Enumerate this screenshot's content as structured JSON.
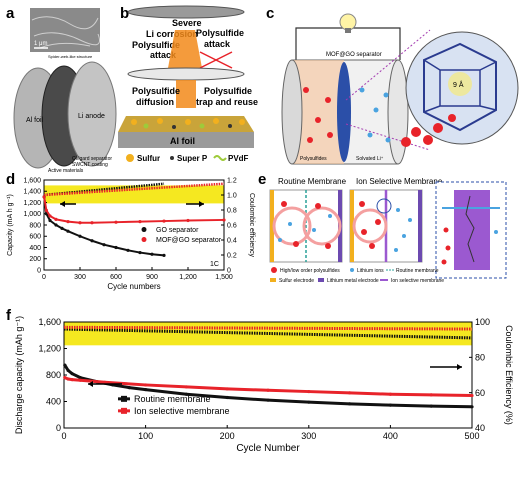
{
  "panels": {
    "a": {
      "label": "a",
      "scale_bar": "1 μm",
      "sem_caption": "Spider-web-like structure",
      "al_foil": "Al foil",
      "li_anode": "Li anode",
      "celgard": "Celgard separator",
      "swcnt": "SWCNT coating",
      "active": "Active materials"
    },
    "b": {
      "label": "b",
      "severe": "Severe",
      "li_corrosion": "Li corrosion",
      "ps_attack_left": "Polysulfide",
      "ps_attack_left2": "attack",
      "ps_attack_right": "Polysulfide",
      "ps_attack_right2": "attack",
      "ps_diffusion": "Polysulfide",
      "ps_diffusion2": "diffusion",
      "ps_trap": "Polysulfide",
      "ps_trap2": "trap and reuse",
      "al_foil": "Al foil",
      "legend_sulfur": "Sulfur",
      "legend_superp": "Super P",
      "legend_pvdf": "PVdF"
    },
    "c": {
      "label": "c",
      "separator": "MOF@GO separator",
      "polysulfides": "Polysulfides",
      "solvated": "Solvated Li⁺",
      "pore": "9 Å"
    },
    "e": {
      "label": "e",
      "routine_title": "Routine Membrane",
      "ion_title": "Ion Selective Membrane",
      "leg_hop": "High/low order polysulfides",
      "leg_li": "Lithium ions",
      "leg_routine": "Routine membrane",
      "leg_sulfur": "Sulfur electrode",
      "leg_lime": "Lithium metal electrode",
      "leg_ion": "Ion selective membrane"
    }
  },
  "chart_data": [
    {
      "panel": "d",
      "type": "scatter",
      "label": "d",
      "xlabel": "Cycle numbers",
      "ylabel": "Capacity (mA h g⁻¹)",
      "y2label": "Coulombic efficiency",
      "xlim": [
        0,
        1500
      ],
      "ylim": [
        0,
        1600
      ],
      "y2lim": [
        0,
        1.2
      ],
      "xticks": [
        "0",
        "300",
        "600",
        "900",
        "1,200",
        "1,500"
      ],
      "yticks": [
        "0",
        "200",
        "400",
        "600",
        "800",
        "1,000",
        "1,200",
        "1,400",
        "1,600"
      ],
      "y2ticks": [
        "0",
        "0.2",
        "0.4",
        "0.6",
        "0.8",
        "1.0",
        "1.2"
      ],
      "rate": "1C",
      "series": [
        {
          "name": "GO separator",
          "color": "#111111",
          "x": [
            1,
            20,
            50,
            100,
            150,
            200,
            300,
            400,
            500,
            600,
            700,
            800,
            900,
            1000
          ],
          "y": [
            1300,
            1000,
            880,
            800,
            740,
            690,
            600,
            520,
            450,
            400,
            350,
            310,
            280,
            260
          ]
        },
        {
          "name": "MOF@GO separator",
          "color": "#e8232a",
          "x": [
            1,
            20,
            50,
            100,
            200,
            300,
            400,
            600,
            800,
            1000,
            1200,
            1500
          ],
          "y": [
            1300,
            1060,
            960,
            900,
            860,
            840,
            840,
            850,
            860,
            870,
            880,
            890
          ]
        }
      ],
      "ce_series": [
        {
          "name": "GO separator CE",
          "color": "#111111",
          "x": [
            0,
            1000
          ],
          "y": [
            1.0,
            1.15
          ]
        },
        {
          "name": "MOF@GO separator CE",
          "color": "#e8232a",
          "x": [
            0,
            1500
          ],
          "y": [
            1.0,
            1.15
          ]
        }
      ]
    },
    {
      "panel": "f",
      "type": "line",
      "label": "f",
      "xlabel": "Cycle Number",
      "ylabel": "Discharge capacity (mAh g⁻¹)",
      "y2label": "Coulombic Efficiency (%)",
      "xlim": [
        0,
        500
      ],
      "ylim": [
        0,
        1600
      ],
      "y2lim": [
        40,
        100
      ],
      "xticks": [
        "0",
        "100",
        "200",
        "300",
        "400",
        "500"
      ],
      "yticks": [
        "0",
        "400",
        "800",
        "1,200",
        "1,600"
      ],
      "y2ticks": [
        "40",
        "60",
        "80",
        "100"
      ],
      "series": [
        {
          "name": "Routine membrane",
          "color": "#111111",
          "x": [
            1,
            5,
            10,
            20,
            40,
            60,
            80,
            100,
            150,
            200,
            250,
            300,
            350,
            400,
            450,
            500
          ],
          "y": [
            950,
            870,
            820,
            760,
            700,
            650,
            610,
            580,
            510,
            460,
            420,
            390,
            365,
            345,
            330,
            320
          ]
        },
        {
          "name": "Ion selective membrane",
          "color": "#e8232a",
          "x": [
            1,
            5,
            10,
            20,
            50,
            100,
            150,
            200,
            250,
            300,
            350,
            400,
            450,
            500
          ],
          "y": [
            760,
            740,
            730,
            720,
            690,
            650,
            620,
            590,
            570,
            550,
            530,
            510,
            500,
            490
          ]
        }
      ],
      "ce_series": [
        {
          "name": "Routine membrane CE",
          "color": "#111111",
          "x": [
            0,
            500
          ],
          "y": [
            96,
            91
          ]
        },
        {
          "name": "Ion selective membrane CE",
          "color": "#e8232a",
          "x": [
            0,
            500
          ],
          "y": [
            97,
            96
          ]
        }
      ]
    }
  ],
  "colors": {
    "ce_band": "#f5e820",
    "red": "#e8232a",
    "black": "#111111",
    "sulfur": "#f2b01e",
    "pvdf": "#9ecb3a",
    "purple": "#9b59d0"
  }
}
